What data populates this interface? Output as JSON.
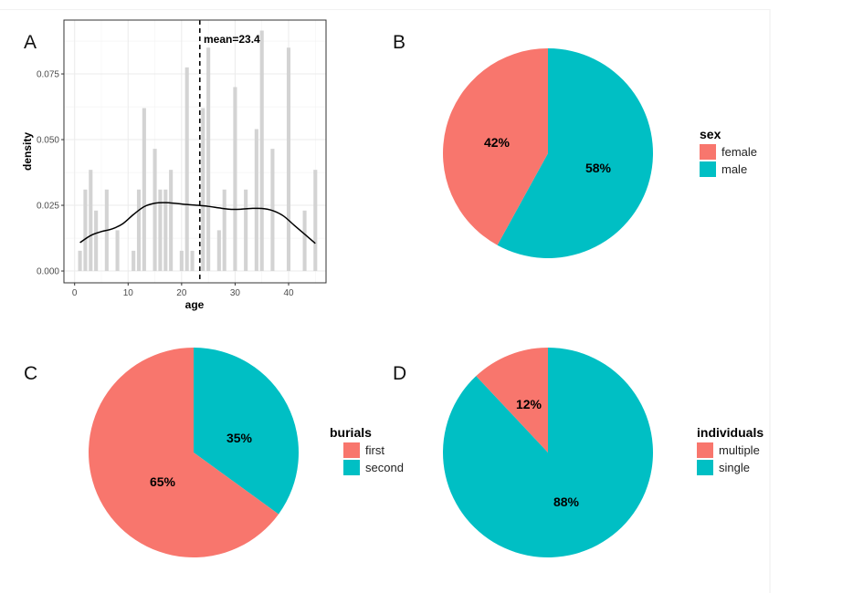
{
  "colors": {
    "female": "#F8766D",
    "male": "#00BFC4",
    "bar": "#d3d3d3",
    "grid_major": "#ebebeb",
    "grid_minor": "#f3f3f3"
  },
  "chart_data": [
    {
      "panel": "A",
      "type": "bar",
      "xlabel": "age",
      "ylabel": "density",
      "xlim": [
        -2,
        47
      ],
      "ylim": [
        -0.0045,
        0.0955
      ],
      "x_ticks": [
        0,
        10,
        20,
        30,
        40
      ],
      "y_ticks": [
        0.0,
        0.025,
        0.05,
        0.075
      ],
      "y_tick_labels": [
        "0.000",
        "0.025",
        "0.050",
        "0.075"
      ],
      "grid": true,
      "bars": {
        "x": [
          1,
          2,
          3,
          4,
          6,
          8,
          11,
          12,
          13,
          15,
          16,
          17,
          18,
          20,
          21,
          22,
          24,
          25,
          27,
          28,
          30,
          32,
          34,
          35,
          37,
          40,
          43,
          45
        ],
        "values": [
          0.0077,
          0.031,
          0.0385,
          0.023,
          0.031,
          0.0155,
          0.0077,
          0.031,
          0.062,
          0.0465,
          0.031,
          0.031,
          0.0385,
          0.0077,
          0.0775,
          0.0077,
          0.062,
          0.085,
          0.0155,
          0.031,
          0.07,
          0.031,
          0.054,
          0.0915,
          0.0465,
          0.085,
          0.023,
          0.0385
        ]
      },
      "density_curve": {
        "x": [
          1,
          3,
          5,
          7,
          9,
          11,
          13,
          15,
          17,
          19,
          21,
          23,
          25,
          27,
          29,
          31,
          33,
          35,
          37,
          39,
          41,
          43,
          45
        ],
        "y": [
          0.0108,
          0.0135,
          0.015,
          0.016,
          0.018,
          0.0215,
          0.0245,
          0.0258,
          0.026,
          0.0257,
          0.0253,
          0.025,
          0.0246,
          0.024,
          0.0235,
          0.0235,
          0.0238,
          0.0238,
          0.023,
          0.021,
          0.0175,
          0.014,
          0.0105
        ]
      },
      "mean": 23.4,
      "mean_label": "mean=23.4"
    },
    {
      "panel": "B",
      "type": "pie",
      "legend_title": "sex",
      "categories": [
        "female",
        "male"
      ],
      "values": [
        42,
        58
      ],
      "labels": [
        "42%",
        "58%"
      ],
      "legend_position": "right"
    },
    {
      "panel": "C",
      "type": "pie",
      "legend_title": "burials",
      "categories": [
        "first",
        "second"
      ],
      "values": [
        65,
        35
      ],
      "labels": [
        "65%",
        "35%"
      ],
      "legend_position": "right"
    },
    {
      "panel": "D",
      "type": "pie",
      "legend_title": "individuals",
      "categories": [
        "multiple",
        "single"
      ],
      "values": [
        12,
        88
      ],
      "labels": [
        "12%",
        "88%"
      ],
      "legend_position": "right"
    }
  ]
}
